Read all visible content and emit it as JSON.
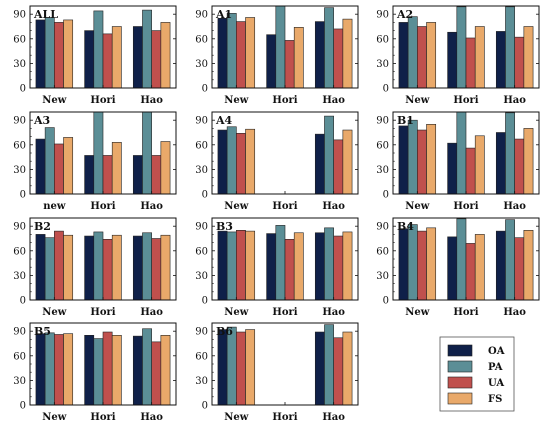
{
  "chart_data": {
    "type": "bar",
    "series_names": [
      "OA",
      "PA",
      "UA",
      "FS"
    ],
    "colors": [
      "#0f2049",
      "#5b8e96",
      "#c0504d",
      "#e9a96a"
    ],
    "ylim": [
      0,
      100
    ],
    "yticks": [
      "0",
      "30",
      "60",
      "90"
    ],
    "legend_position": "bottom-right",
    "panels": [
      {
        "title": "ALL",
        "yticks": [
          "0",
          "30",
          "60",
          "90"
        ],
        "categories": [
          "New",
          "Hori",
          "Hao"
        ],
        "values": [
          [
            83,
            86,
            80,
            83
          ],
          [
            70,
            94,
            66,
            75
          ],
          [
            75,
            95,
            70,
            80
          ]
        ]
      },
      {
        "title": "A1",
        "yticks": [
          "0",
          "30",
          "60",
          "90"
        ],
        "categories": [
          "New",
          "Hori",
          "Hao"
        ],
        "values": [
          [
            85,
            91,
            81,
            86
          ],
          [
            65,
            100,
            58,
            74
          ],
          [
            81,
            98,
            72,
            84
          ]
        ]
      },
      {
        "title": "A2",
        "yticks": [
          "0",
          "30",
          "60",
          "90"
        ],
        "categories": [
          "New",
          "Hori",
          "Hao"
        ],
        "values": [
          [
            80,
            87,
            75,
            80
          ],
          [
            68,
            99,
            61,
            75
          ],
          [
            69,
            99,
            62,
            75
          ]
        ]
      },
      {
        "title": "A3",
        "yticks": [
          "0",
          "30",
          "60",
          "90"
        ],
        "categories": [
          "new",
          "Hori",
          "Hao"
        ],
        "values": [
          [
            67,
            81,
            61,
            69
          ],
          [
            47,
            100,
            47,
            63
          ],
          [
            47,
            100,
            47,
            64
          ]
        ]
      },
      {
        "title": "A4",
        "yticks": [
          "0",
          "30",
          "60",
          "90"
        ],
        "categories": [
          "New",
          "Hori",
          "Hao"
        ],
        "values": [
          [
            78,
            82,
            74,
            79
          ],
          null,
          [
            73,
            95,
            66,
            78
          ]
        ]
      },
      {
        "title": "B1",
        "yticks": [
          "0",
          "30",
          "60",
          "90"
        ],
        "categories": [
          "New",
          "Hori",
          "Hao"
        ],
        "values": [
          [
            83,
            90,
            78,
            85
          ],
          [
            62,
            100,
            56,
            71
          ],
          [
            75,
            99,
            67,
            80
          ]
        ]
      },
      {
        "title": "B2",
        "yticks": [
          "0",
          "30",
          "60",
          "90"
        ],
        "categories": [
          "New",
          "Hori",
          "Hao"
        ],
        "values": [
          [
            80,
            76,
            84,
            79
          ],
          [
            78,
            83,
            74,
            79
          ],
          [
            78,
            82,
            75,
            79
          ]
        ]
      },
      {
        "title": "B3",
        "yticks": [
          "0",
          "30",
          "60",
          "90"
        ],
        "categories": [
          "New",
          "Hori",
          "Hao"
        ],
        "values": [
          [
            84,
            83,
            85,
            84
          ],
          [
            81,
            91,
            74,
            82
          ],
          [
            82,
            88,
            78,
            83
          ]
        ]
      },
      {
        "title": "B4",
        "yticks": [
          "0",
          "30",
          "60",
          "90"
        ],
        "categories": [
          "New",
          "Hori",
          "Hao"
        ],
        "values": [
          [
            87,
            92,
            84,
            88
          ],
          [
            77,
            99,
            69,
            80
          ],
          [
            84,
            98,
            76,
            85
          ]
        ]
      },
      {
        "title": "B5",
        "yticks": [
          "0",
          "30",
          "60",
          "90"
        ],
        "categories": [
          "New",
          "Hori",
          "Hao"
        ],
        "values": [
          [
            87,
            88,
            86,
            87
          ],
          [
            85,
            81,
            89,
            85
          ],
          [
            84,
            93,
            77,
            85
          ]
        ]
      },
      {
        "title": "B6",
        "yticks": [
          "0",
          "30",
          "60",
          "90"
        ],
        "categories": [
          "New",
          "Hori",
          "Hao"
        ],
        "values": [
          [
            92,
            95,
            89,
            92
          ],
          null,
          [
            89,
            98,
            82,
            89
          ]
        ]
      }
    ]
  }
}
